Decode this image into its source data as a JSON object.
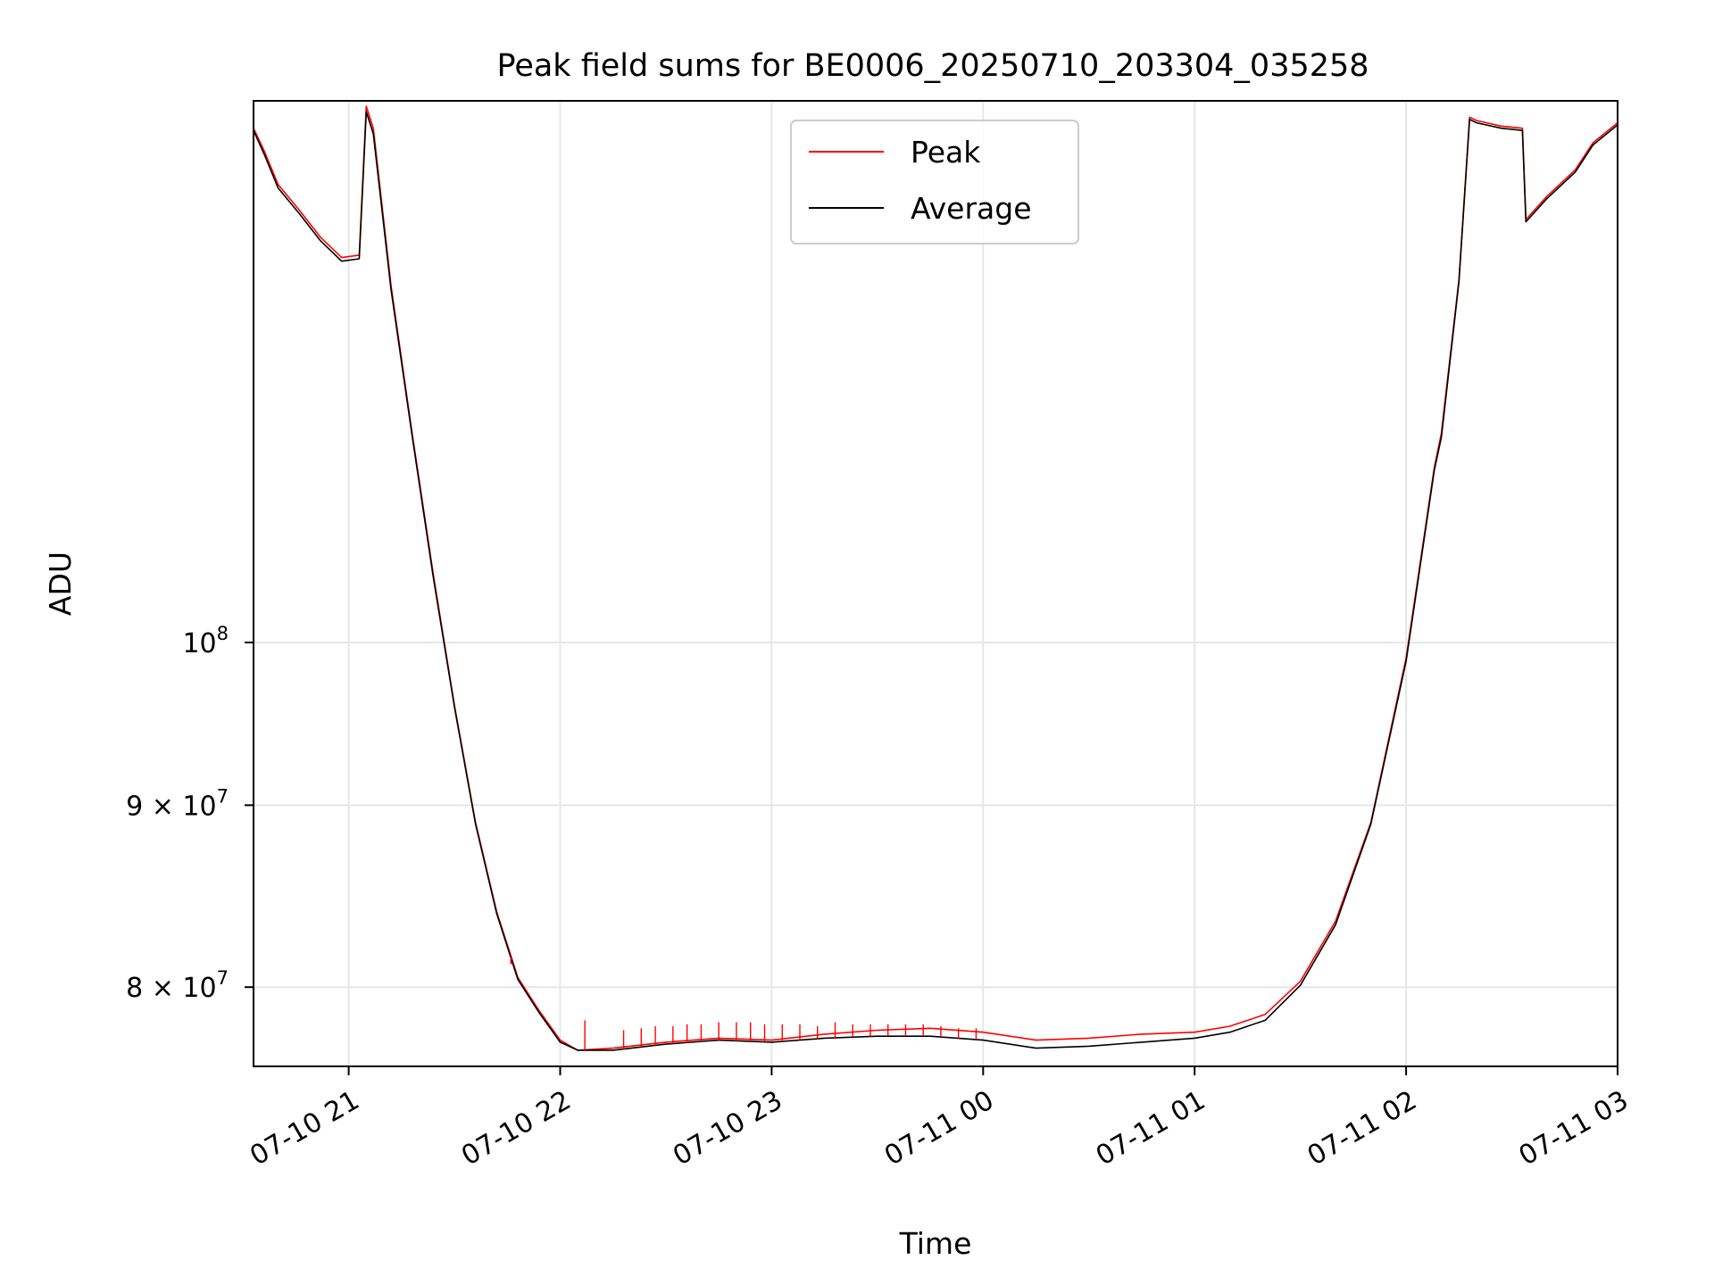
{
  "chart_data": {
    "type": "line",
    "title": "Peak field sums for BE0006_20250710_203304_035258",
    "xlabel": "Time",
    "ylabel": "ADU",
    "x_format": "MM-DD HH",
    "xlim": [
      "2025-07-10 20:33",
      "2025-07-11 03:00"
    ],
    "ylim": [
      76000000,
      142000000
    ],
    "yscale": "log",
    "x_ticks": [
      {
        "t": "2025-07-10 21:00",
        "label": "07-10 21"
      },
      {
        "t": "2025-07-10 22:00",
        "label": "07-10 22"
      },
      {
        "t": "2025-07-10 23:00",
        "label": "07-10 23"
      },
      {
        "t": "2025-07-11 00:00",
        "label": "07-11 00"
      },
      {
        "t": "2025-07-11 01:00",
        "label": "07-11 01"
      },
      {
        "t": "2025-07-11 02:00",
        "label": "07-11 02"
      },
      {
        "t": "2025-07-11 03:00",
        "label": "07-11 03"
      }
    ],
    "y_ticks": [
      {
        "value": 80000000,
        "label": "8 × 10",
        "exp": "7"
      },
      {
        "value": 90000000,
        "label": "9 × 10",
        "exp": "7"
      },
      {
        "value": 100000000,
        "label": "10",
        "exp": "8"
      }
    ],
    "grid": true,
    "legend_position": "top-center",
    "series": [
      {
        "name": "Peak",
        "color": "#ff0000",
        "x": [
          "2025-07-10 20:33",
          "2025-07-10 20:36",
          "2025-07-10 20:40",
          "2025-07-10 20:46",
          "2025-07-10 20:52",
          "2025-07-10 20:58",
          "2025-07-10 21:03",
          "2025-07-10 21:05",
          "2025-07-10 21:07",
          "2025-07-10 21:12",
          "2025-07-10 21:18",
          "2025-07-10 21:24",
          "2025-07-10 21:30",
          "2025-07-10 21:36",
          "2025-07-10 21:42",
          "2025-07-10 21:48",
          "2025-07-10 21:54",
          "2025-07-10 22:00",
          "2025-07-10 22:05",
          "2025-07-10 22:15",
          "2025-07-10 22:30",
          "2025-07-10 22:45",
          "2025-07-10 23:00",
          "2025-07-10 23:15",
          "2025-07-10 23:30",
          "2025-07-10 23:45",
          "2025-07-11 00:00",
          "2025-07-11 00:15",
          "2025-07-11 00:30",
          "2025-07-11 00:45",
          "2025-07-11 01:00",
          "2025-07-11 01:10",
          "2025-07-11 01:20",
          "2025-07-11 01:30",
          "2025-07-11 01:40",
          "2025-07-11 01:50",
          "2025-07-11 02:00",
          "2025-07-11 02:08",
          "2025-07-11 02:10",
          "2025-07-11 02:15",
          "2025-07-11 02:18",
          "2025-07-11 02:20",
          "2025-07-11 02:27",
          "2025-07-11 02:33",
          "2025-07-11 02:34",
          "2025-07-11 02:40",
          "2025-07-11 02:48",
          "2025-07-11 02:53",
          "2025-07-11 03:00"
        ],
        "y": [
          139500000,
          137500000,
          134500000,
          132300000,
          130000000,
          128300000,
          128500000,
          141500000,
          139500000,
          126000000,
          114500000,
          104500000,
          96000000,
          89000000,
          84000000,
          80500000,
          78800000,
          77300000,
          76800000,
          76900000,
          77200000,
          77400000,
          77300000,
          77600000,
          77800000,
          77900000,
          77700000,
          77300000,
          77400000,
          77600000,
          77700000,
          78000000,
          78600000,
          80300000,
          83500000,
          89000000,
          99000000,
          112000000,
          114500000,
          126500000,
          140500000,
          140200000,
          139700000,
          139500000,
          131500000,
          133500000,
          135800000,
          138200000,
          140000000
        ]
      },
      {
        "name": "Average",
        "color": "#000000",
        "x": [
          "2025-07-10 20:33",
          "2025-07-10 20:36",
          "2025-07-10 20:40",
          "2025-07-10 20:46",
          "2025-07-10 20:52",
          "2025-07-10 20:58",
          "2025-07-10 21:03",
          "2025-07-10 21:05",
          "2025-07-10 21:07",
          "2025-07-10 21:12",
          "2025-07-10 21:18",
          "2025-07-10 21:24",
          "2025-07-10 21:30",
          "2025-07-10 21:36",
          "2025-07-10 21:42",
          "2025-07-10 21:48",
          "2025-07-10 21:54",
          "2025-07-10 22:00",
          "2025-07-10 22:05",
          "2025-07-10 22:15",
          "2025-07-10 22:30",
          "2025-07-10 22:45",
          "2025-07-10 23:00",
          "2025-07-10 23:15",
          "2025-07-10 23:30",
          "2025-07-10 23:45",
          "2025-07-11 00:00",
          "2025-07-11 00:15",
          "2025-07-11 00:30",
          "2025-07-11 00:45",
          "2025-07-11 01:00",
          "2025-07-11 01:10",
          "2025-07-11 01:20",
          "2025-07-11 01:30",
          "2025-07-11 01:40",
          "2025-07-11 01:50",
          "2025-07-11 02:00",
          "2025-07-11 02:08",
          "2025-07-11 02:10",
          "2025-07-11 02:15",
          "2025-07-11 02:18",
          "2025-07-11 02:20",
          "2025-07-11 02:27",
          "2025-07-11 02:33",
          "2025-07-11 02:34",
          "2025-07-11 02:40",
          "2025-07-11 02:48",
          "2025-07-11 02:53",
          "2025-07-11 03:00"
        ],
        "y": [
          139300000,
          137200000,
          134200000,
          132000000,
          129700000,
          128000000,
          128200000,
          141000000,
          139000000,
          125700000,
          114300000,
          104300000,
          95900000,
          88900000,
          83900000,
          80400000,
          78700000,
          77200000,
          76800000,
          76800000,
          77100000,
          77300000,
          77200000,
          77400000,
          77500000,
          77500000,
          77300000,
          76900000,
          77000000,
          77200000,
          77400000,
          77700000,
          78300000,
          80100000,
          83300000,
          88900000,
          98800000,
          111800000,
          114200000,
          126300000,
          140300000,
          140000000,
          139500000,
          139300000,
          131300000,
          133300000,
          135600000,
          138000000,
          139800000
        ]
      }
    ],
    "peak_spikes": [
      {
        "t": "2025-07-10 21:46",
        "y": 81200000
      },
      {
        "t": "2025-07-10 22:07",
        "y": 78300000
      },
      {
        "t": "2025-07-10 22:18",
        "y": 77800000
      },
      {
        "t": "2025-07-10 22:23",
        "y": 77900000
      },
      {
        "t": "2025-07-10 22:27",
        "y": 78000000
      },
      {
        "t": "2025-07-10 22:32",
        "y": 78000000
      },
      {
        "t": "2025-07-10 22:36",
        "y": 78100000
      },
      {
        "t": "2025-07-10 22:40",
        "y": 78100000
      },
      {
        "t": "2025-07-10 22:45",
        "y": 78200000
      },
      {
        "t": "2025-07-10 22:50",
        "y": 78200000
      },
      {
        "t": "2025-07-10 22:54",
        "y": 78200000
      },
      {
        "t": "2025-07-10 22:58",
        "y": 78100000
      },
      {
        "t": "2025-07-10 23:03",
        "y": 78100000
      },
      {
        "t": "2025-07-10 23:08",
        "y": 78100000
      },
      {
        "t": "2025-07-10 23:13",
        "y": 78000000
      },
      {
        "t": "2025-07-10 23:18",
        "y": 78200000
      },
      {
        "t": "2025-07-10 23:23",
        "y": 78100000
      },
      {
        "t": "2025-07-10 23:28",
        "y": 78100000
      },
      {
        "t": "2025-07-10 23:33",
        "y": 78100000
      },
      {
        "t": "2025-07-10 23:38",
        "y": 78100000
      },
      {
        "t": "2025-07-10 23:43",
        "y": 78100000
      },
      {
        "t": "2025-07-10 23:48",
        "y": 78000000
      },
      {
        "t": "2025-07-10 23:53",
        "y": 77900000
      },
      {
        "t": "2025-07-10 23:58",
        "y": 77900000
      }
    ]
  }
}
